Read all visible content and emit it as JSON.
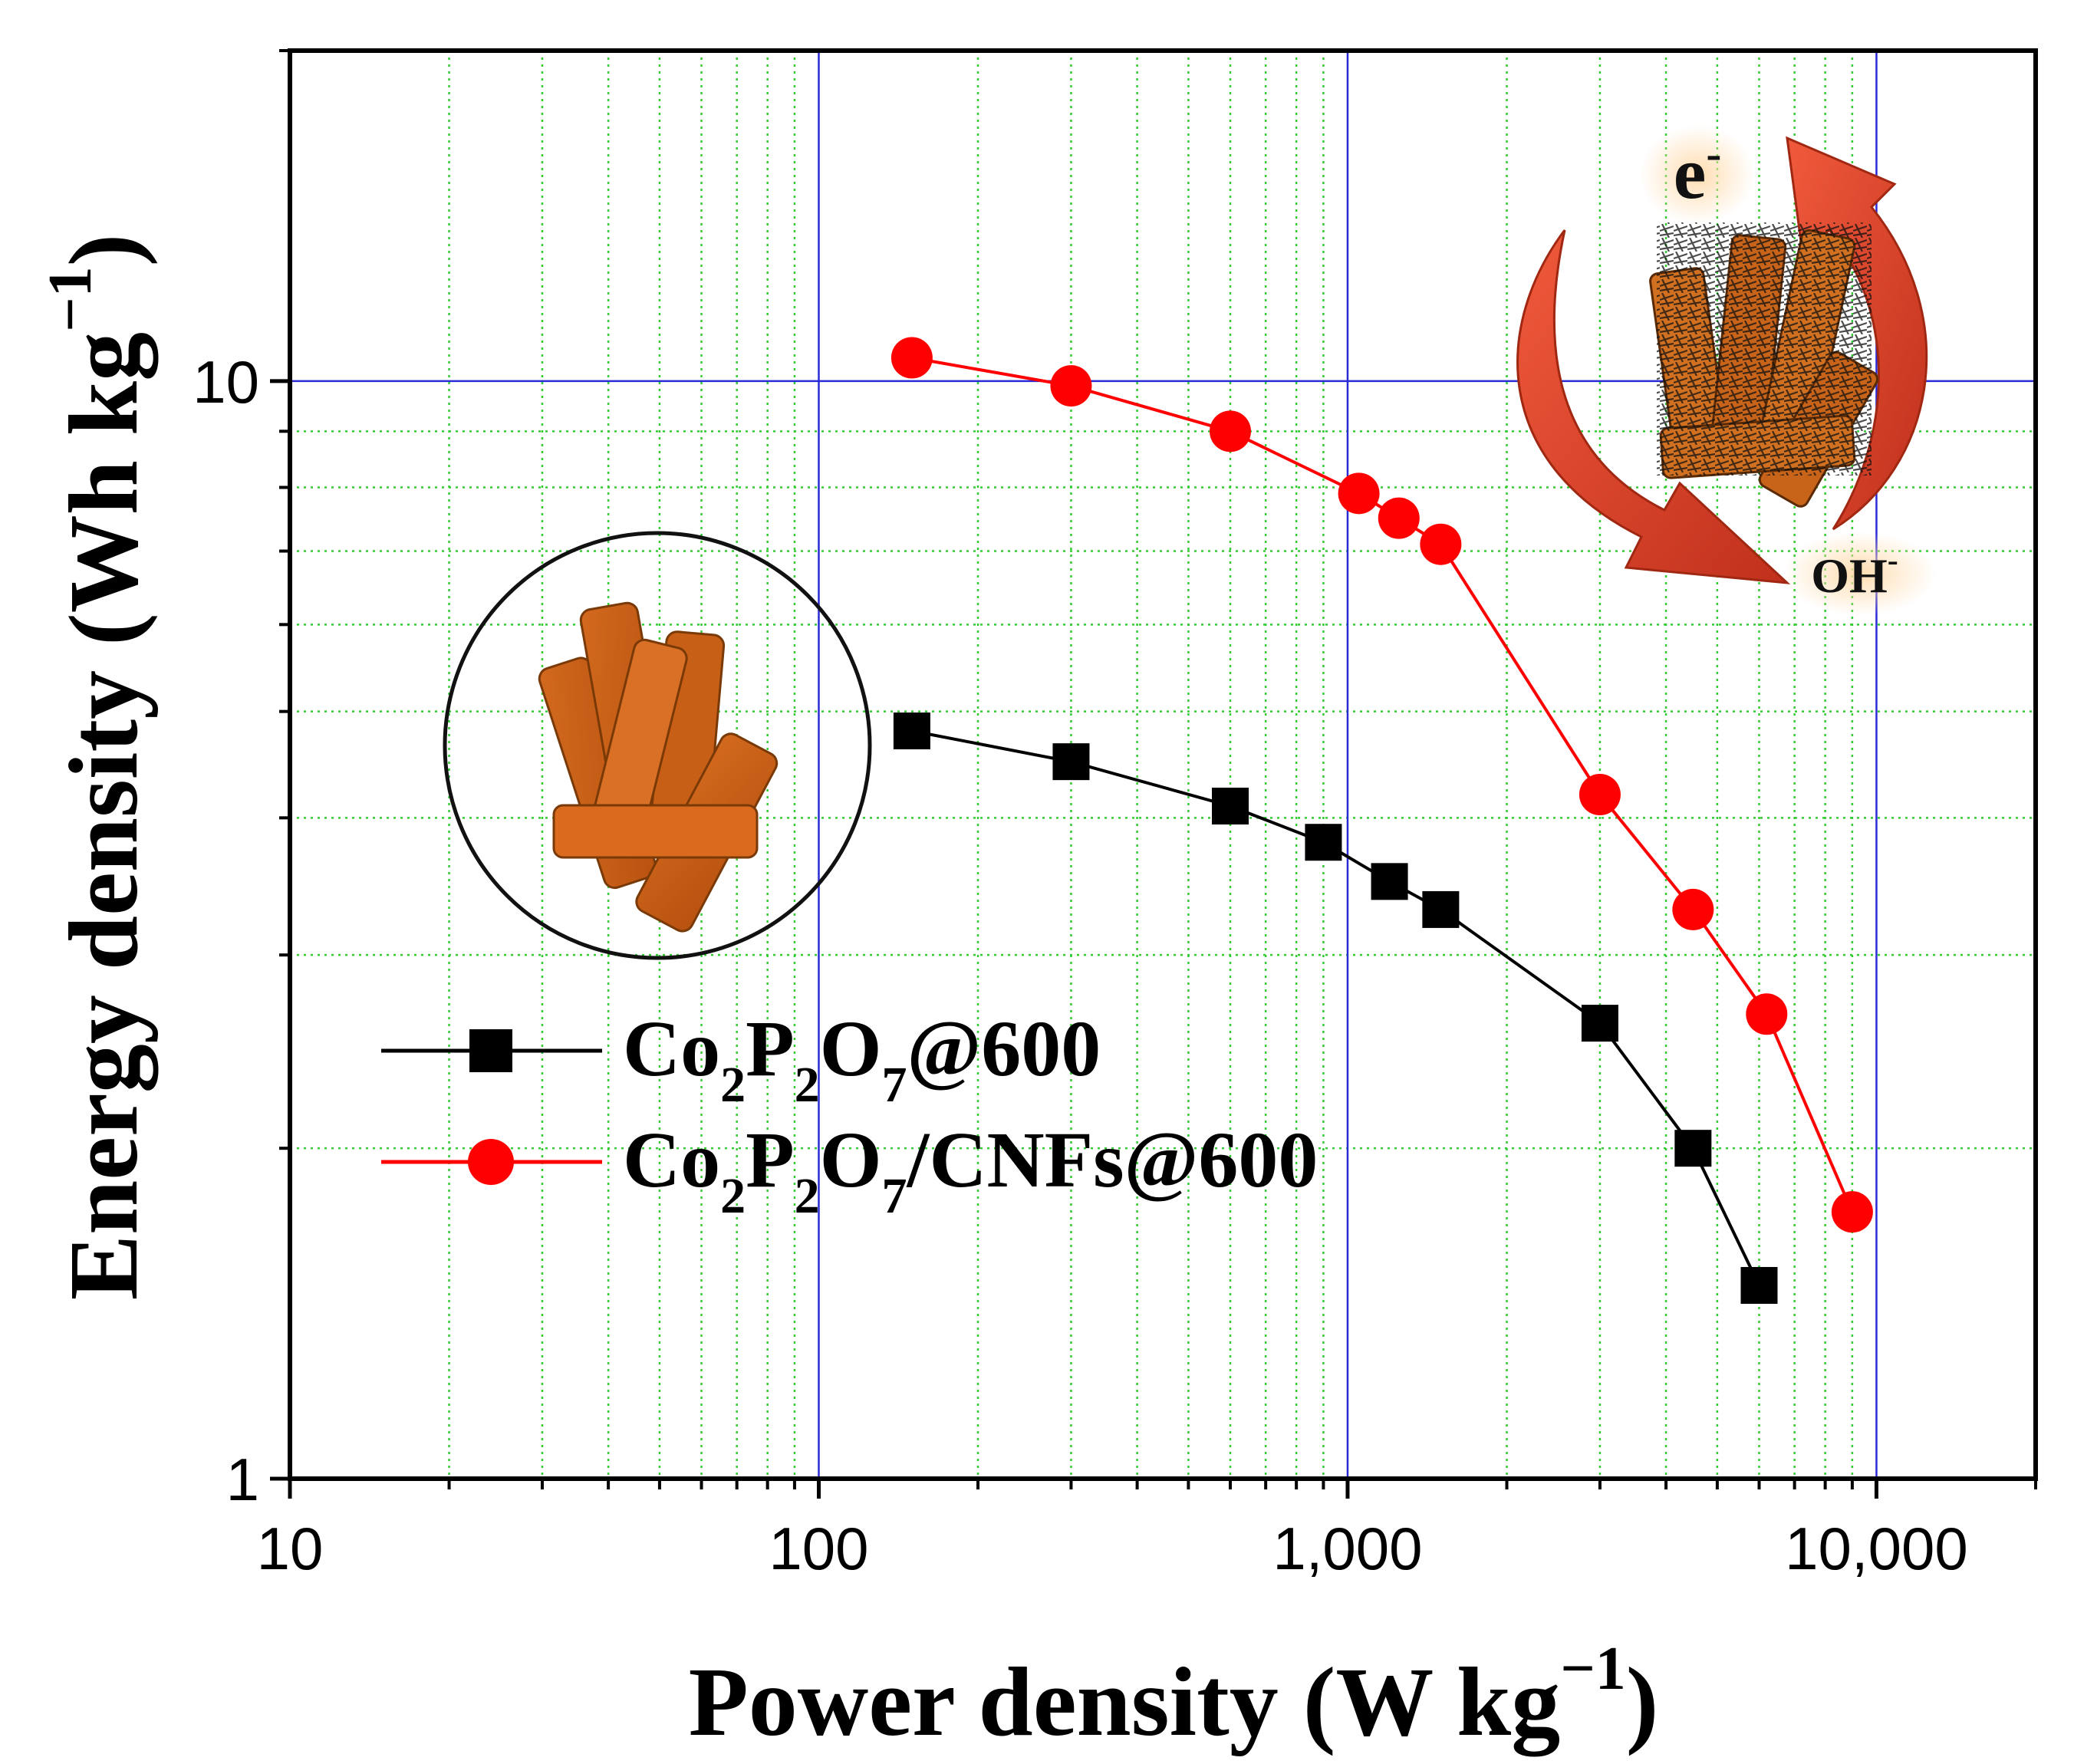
{
  "chart_data": {
    "type": "line",
    "xscale": "log",
    "yscale": "log",
    "xlabel_main": "Power density (W kg",
    "xlabel_sup": "−1",
    "xlabel_close": ")",
    "ylabel_main": "Energy density (Wh kg",
    "ylabel_sup": "−1",
    "ylabel_close": ")",
    "xlim": [
      10,
      20000
    ],
    "ylim": [
      1,
      20
    ],
    "xticks": [
      {
        "value": 10,
        "label": "10"
      },
      {
        "value": 100,
        "label": "100"
      },
      {
        "value": 1000,
        "label": "1,000"
      },
      {
        "value": 10000,
        "label": "10,000"
      }
    ],
    "yticks": [
      {
        "value": 1,
        "label": "1"
      },
      {
        "value": 10,
        "label": "10"
      }
    ],
    "grid": {
      "major": true,
      "minor": true,
      "major_color": "#2b2bd6",
      "minor_color": "#33cc33"
    },
    "legend_position": "lower-left",
    "series": [
      {
        "name_parts": [
          "Co",
          "2",
          "P",
          "2",
          "O",
          "7",
          "@600"
        ],
        "color": "#000000",
        "marker": "square",
        "x": [
          150,
          300,
          600,
          900,
          1200,
          1500,
          3000,
          4500,
          6000
        ],
        "y": [
          4.8,
          4.5,
          4.1,
          3.8,
          3.5,
          3.3,
          2.6,
          2.0,
          1.5
        ]
      },
      {
        "name_parts": [
          "Co",
          "2",
          "P",
          "2",
          "O",
          "7",
          "/CNFs@600"
        ],
        "color": "#ff0000",
        "marker": "circle",
        "x": [
          150,
          300,
          600,
          1050,
          1250,
          1500,
          3000,
          4500,
          6200,
          9000
        ],
        "y": [
          10.5,
          9.9,
          9.0,
          7.9,
          7.5,
          7.1,
          4.2,
          3.3,
          2.65,
          1.75
        ]
      }
    ],
    "annotations": [
      {
        "id": "electron",
        "base": "e",
        "sup": "-"
      },
      {
        "id": "hydroxide",
        "base": "OH",
        "sup": "-"
      }
    ]
  }
}
